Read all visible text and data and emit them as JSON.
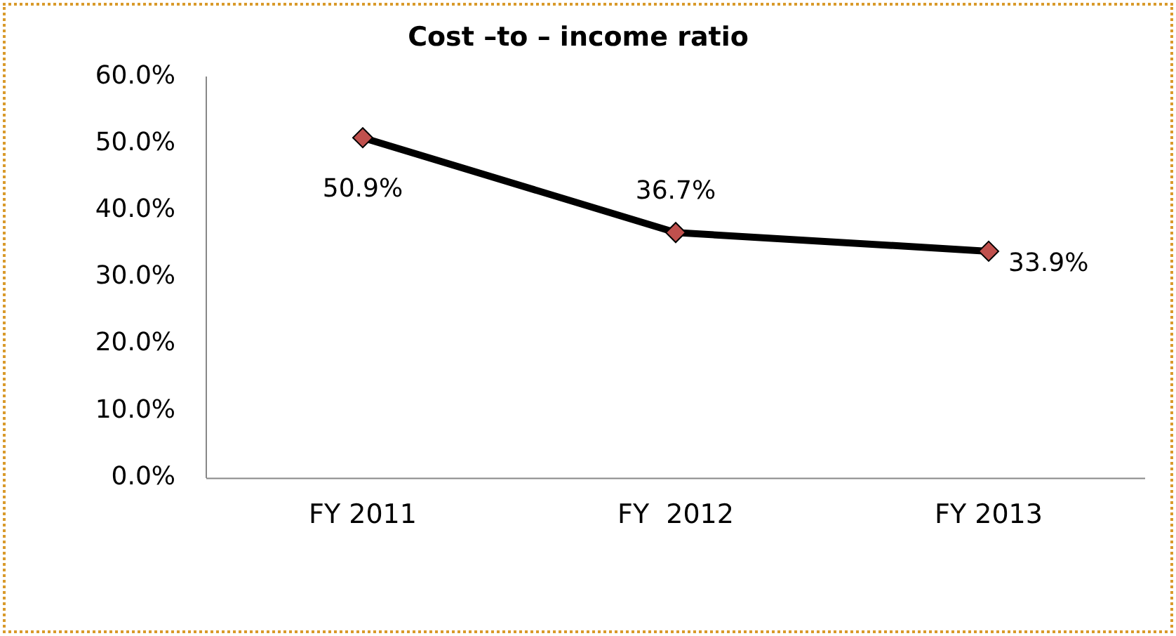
{
  "chart_data": {
    "type": "line",
    "title": "Cost –to – income ratio",
    "categories": [
      "FY 2011",
      "FY  2012",
      "FY 2013"
    ],
    "series": [
      {
        "color": "#000000",
        "values": [
          50.9,
          36.7,
          33.9
        ]
      }
    ],
    "marker": "diamond",
    "ylim": [
      0,
      60
    ],
    "yticks": [
      {
        "value": 0,
        "label": "0.0%"
      },
      {
        "value": 10,
        "label": "10.0%"
      },
      {
        "value": 20,
        "label": "20.0%"
      },
      {
        "value": 30,
        "label": "30.0%"
      },
      {
        "value": 40,
        "label": "40.0%"
      },
      {
        "value": 50,
        "label": "50.0%"
      },
      {
        "value": 60,
        "label": "60.0%"
      }
    ],
    "value_labels": [
      "50.9%",
      "36.7%",
      "33.9%"
    ],
    "grid": false,
    "legend": false
  }
}
